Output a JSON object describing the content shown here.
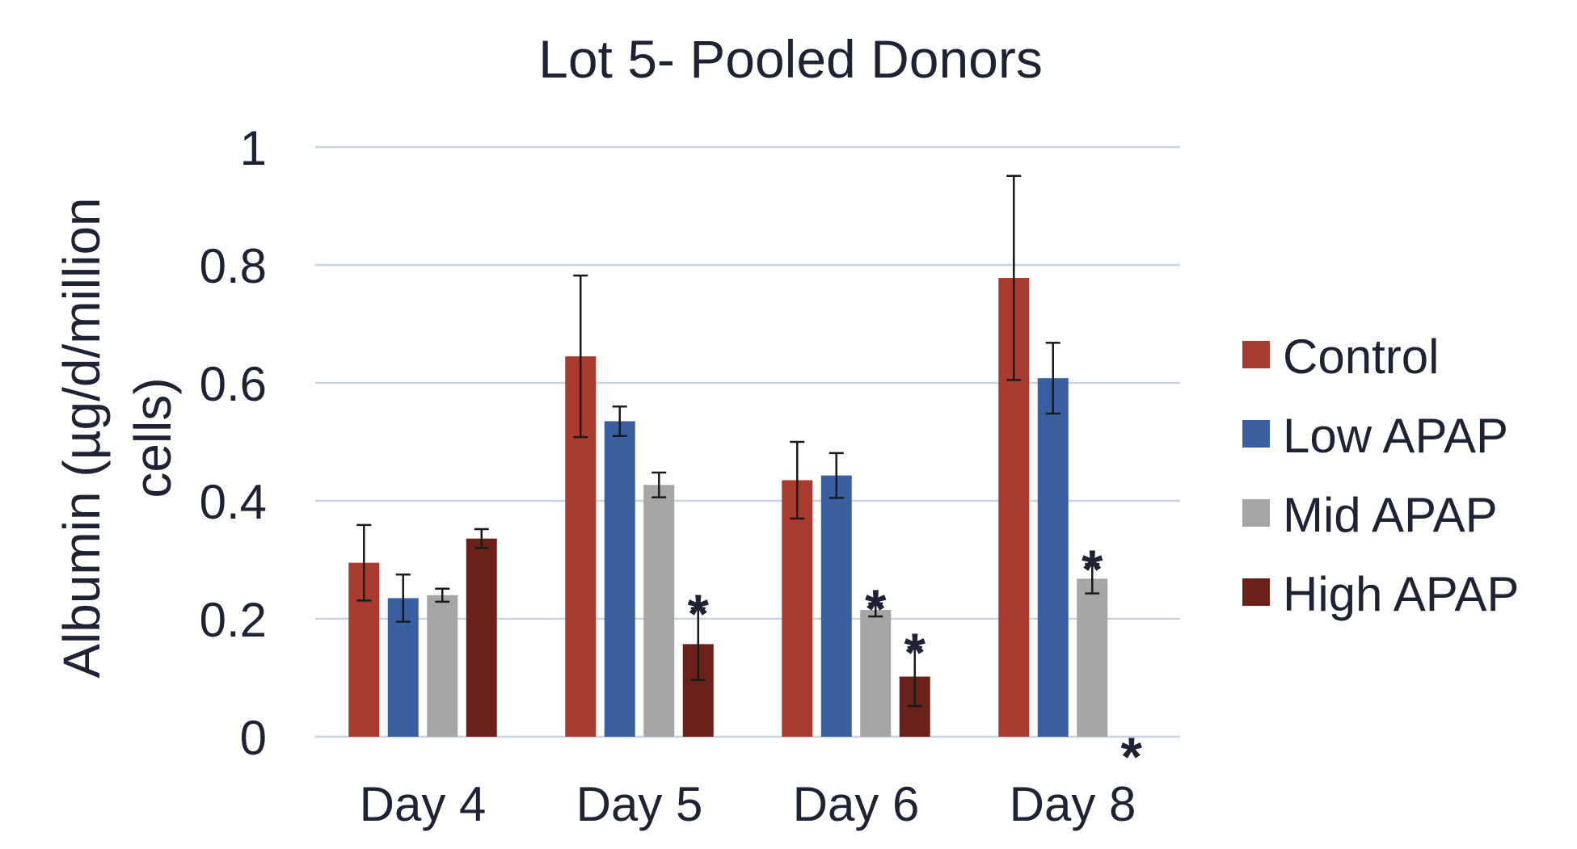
{
  "chart_data": {
    "type": "bar",
    "title": "Lot 5- Pooled Donors",
    "ylabel_lines": [
      "Albumin (µg/d/million",
      "cells)"
    ],
    "xlabel": "",
    "categories": [
      "Day 4",
      "Day 5",
      "Day 6",
      "Day 8"
    ],
    "ylim": [
      0,
      1
    ],
    "yticks": [
      0,
      0.2,
      0.4,
      0.6,
      0.8,
      1
    ],
    "ytick_labels": [
      "0",
      "0.2",
      "0.4",
      "0.6",
      "0.8",
      "1"
    ],
    "grid": true,
    "legend_position": "right",
    "series": [
      {
        "name": "Control",
        "color": "#a93a2e",
        "values": [
          0.295,
          0.645,
          0.435,
          0.778
        ],
        "errors": [
          0.064,
          0.137,
          0.065,
          0.173
        ],
        "significant": [
          false,
          false,
          false,
          false
        ]
      },
      {
        "name": "Low APAP",
        "color": "#3a5fa0",
        "values": [
          0.235,
          0.535,
          0.443,
          0.608
        ],
        "errors": [
          0.04,
          0.025,
          0.038,
          0.06
        ],
        "significant": [
          false,
          false,
          false,
          false
        ]
      },
      {
        "name": "Mid APAP",
        "color": "#a6a6a6",
        "values": [
          0.24,
          0.427,
          0.215,
          0.268
        ],
        "errors": [
          0.011,
          0.021,
          0.011,
          0.025
        ],
        "significant": [
          false,
          false,
          true,
          true
        ]
      },
      {
        "name": "High APAP",
        "color": "#6b2119",
        "values": [
          0.336,
          0.157,
          0.102,
          0.0
        ],
        "errors": [
          0.016,
          0.061,
          0.05,
          0.0
        ],
        "significant": [
          false,
          true,
          true,
          true
        ]
      }
    ],
    "significance_marker": "*"
  }
}
